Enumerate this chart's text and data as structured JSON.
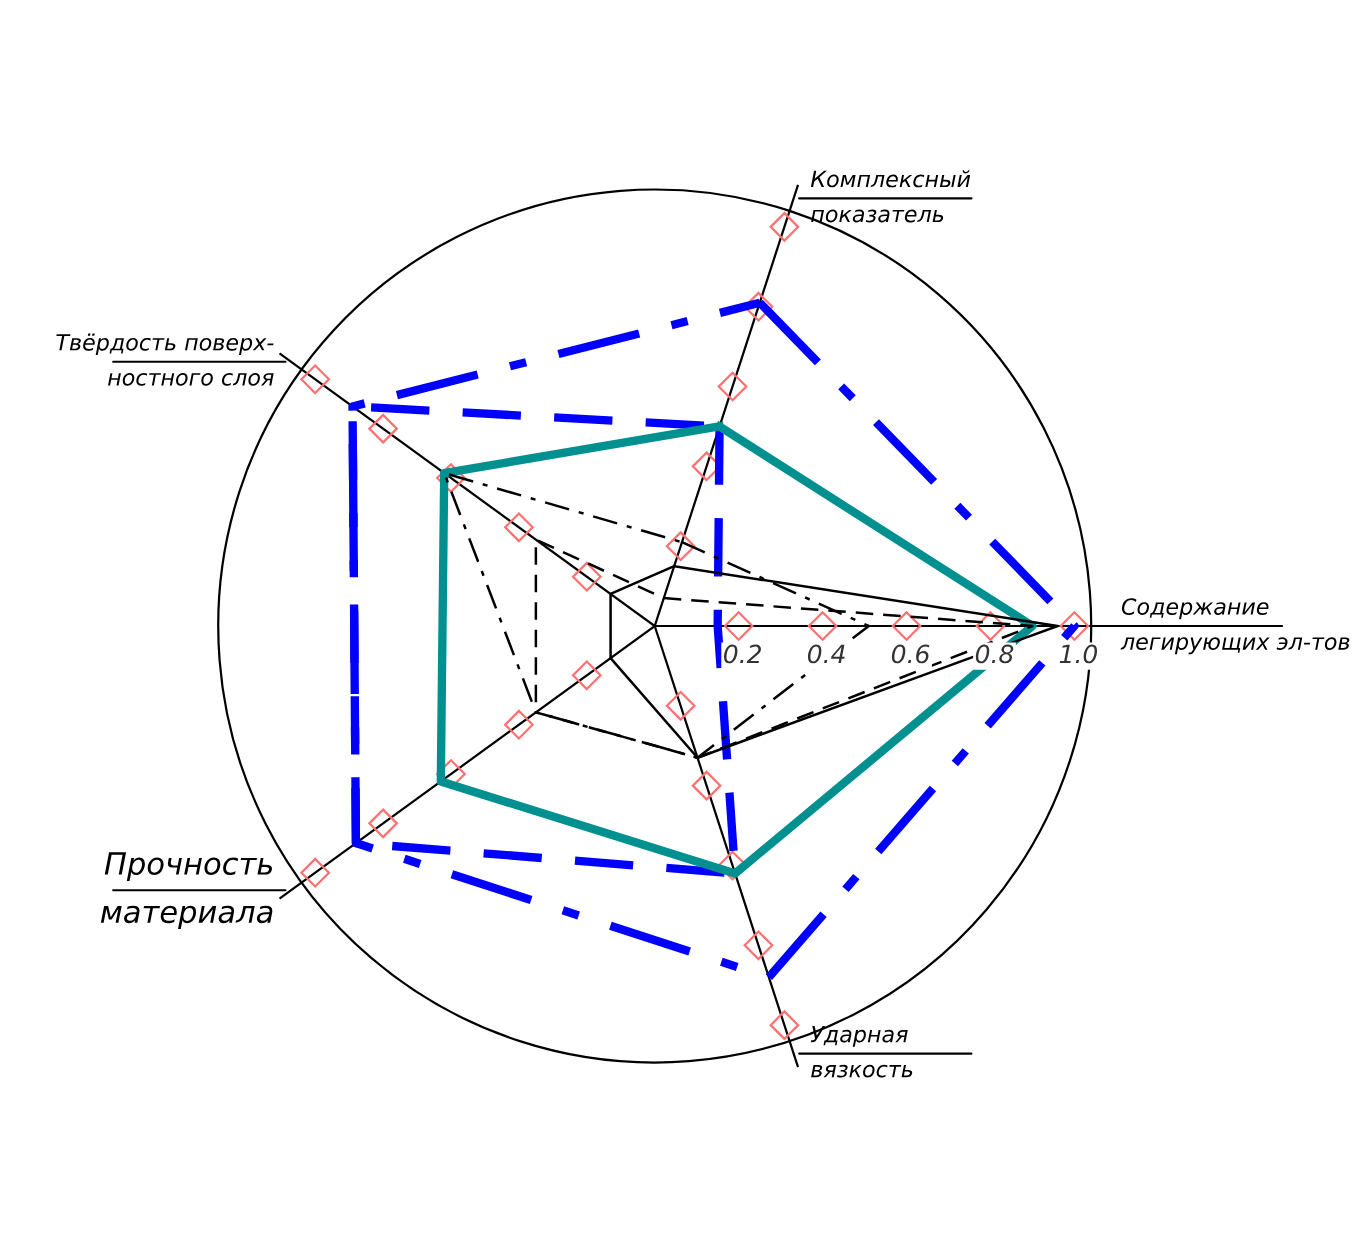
{
  "chart_data": {
    "type": "radar",
    "categories": [
      "Комплексный\nпоказатель",
      "Содержание\nлегирующих эл-тов",
      "Ударная\nвязкость",
      "Прочность\nматериала",
      "Твёрдость поверх-\nностного слоя"
    ],
    "series": [
      {
        "color": "#0000ff",
        "line_style": "dashdot",
        "values": [
          0.81,
          1.0,
          0.88,
          0.88,
          0.89
        ]
      },
      {
        "color": "#0000ff",
        "line_style": "dashed",
        "values": [
          0.5,
          0.15,
          0.62,
          0.88,
          0.89
        ]
      },
      {
        "color": "#009090",
        "line_style": "solid",
        "values": [
          0.5,
          0.9,
          0.62,
          0.63,
          0.62
        ]
      },
      {
        "color": "#000000",
        "line_style": "solid",
        "values": [
          0.15,
          0.96,
          0.33,
          0.13,
          0.13
        ]
      },
      {
        "color": "#000000",
        "line_style": "dashed",
        "values": [
          0.07,
          0.9,
          0.33,
          0.35,
          0.35
        ]
      },
      {
        "color": "#000000",
        "line_style": "dashdot",
        "values": [
          0.21,
          0.51,
          0.33,
          0.35,
          0.62
        ]
      }
    ],
    "ylim": [
      0,
      1.04
    ],
    "yticks": [
      0.2,
      0.4,
      0.6,
      0.8,
      {
        "value": 1,
        "label": "1.0"
      }
    ],
    "grid": true,
    "marker": "none"
  }
}
